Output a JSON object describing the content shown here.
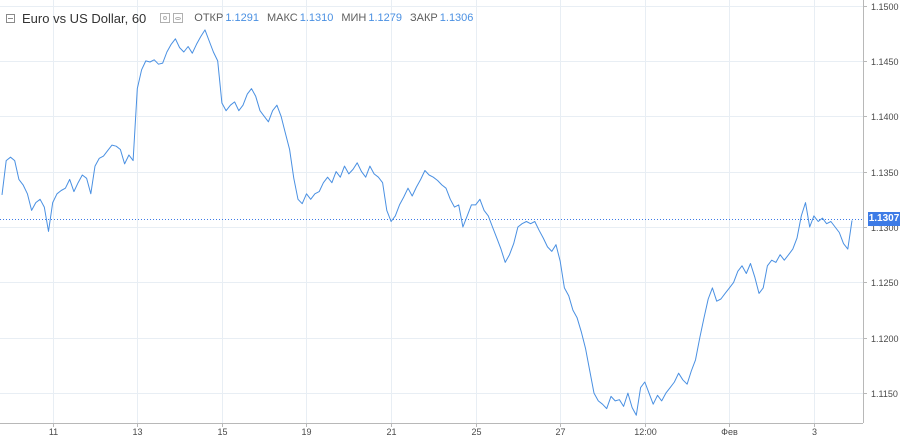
{
  "legend": {
    "symbol": "Euro vs US Dollar, 60",
    "open_label": "ОТКР",
    "open_value": "1.1291",
    "high_label": "МАКС",
    "high_value": "1.1310",
    "low_label": "МИН",
    "low_value": "1.1279",
    "close_label": "ЗАКР",
    "close_value": "1.1306"
  },
  "colors": {
    "line": "#4a90e2",
    "grid": "#e8eef4",
    "badge": "#3d7be6"
  },
  "icons": [
    "collapse-icon",
    "settings-icon",
    "visibility-icon"
  ],
  "chart_data": {
    "type": "line",
    "title": "Euro vs US Dollar, 60",
    "xlabel": "",
    "ylabel": "",
    "ylim": [
      1.1123,
      1.1505
    ],
    "grid": true,
    "y_ticks": [
      "1.1500",
      "1.1450",
      "1.1400",
      "1.1350",
      "1.1300",
      "1.1250",
      "1.1200",
      "1.1150"
    ],
    "y_tick_values": [
      1.15,
      1.145,
      1.14,
      1.135,
      1.13,
      1.125,
      1.12,
      1.115
    ],
    "x_ticks": [
      "11",
      "13",
      "15",
      "19",
      "21",
      "25",
      "27",
      "12:00",
      "Фев",
      "3"
    ],
    "x_tick_index": [
      12,
      32,
      52,
      72,
      92,
      112,
      132,
      152,
      172,
      192
    ],
    "current_price": 1.1307,
    "current_price_label": "1.1307",
    "series": [
      {
        "values": [
          1.1329,
          1.136,
          1.1363,
          1.136,
          1.1343,
          1.1338,
          1.133,
          1.1315,
          1.1322,
          1.1325,
          1.1318,
          1.1296,
          1.1322,
          1.133,
          1.1333,
          1.1335,
          1.1343,
          1.1332,
          1.134,
          1.1347,
          1.1344,
          1.133,
          1.1355,
          1.1362,
          1.1364,
          1.1369,
          1.1374,
          1.1373,
          1.137,
          1.1357,
          1.1365,
          1.136,
          1.1425,
          1.1442,
          1.145,
          1.1449,
          1.1451,
          1.1447,
          1.1448,
          1.1458,
          1.1465,
          1.147,
          1.1462,
          1.1458,
          1.1463,
          1.1457,
          1.1465,
          1.1472,
          1.1478,
          1.1468,
          1.1458,
          1.145,
          1.1412,
          1.1405,
          1.141,
          1.1413,
          1.1405,
          1.141,
          1.142,
          1.1425,
          1.1418,
          1.1405,
          1.14,
          1.1395,
          1.1405,
          1.141,
          1.14,
          1.1385,
          1.137,
          1.1344,
          1.1325,
          1.1321,
          1.133,
          1.1325,
          1.133,
          1.1332,
          1.134,
          1.1345,
          1.134,
          1.135,
          1.1345,
          1.1355,
          1.1348,
          1.1352,
          1.1358,
          1.135,
          1.1345,
          1.1355,
          1.1348,
          1.1345,
          1.134,
          1.1315,
          1.1305,
          1.131,
          1.132,
          1.1327,
          1.1335,
          1.1328,
          1.1336,
          1.1343,
          1.1351,
          1.1347,
          1.1345,
          1.1342,
          1.1338,
          1.1335,
          1.1325,
          1.1318,
          1.132,
          1.13,
          1.131,
          1.132,
          1.132,
          1.1325,
          1.1315,
          1.131,
          1.13,
          1.129,
          1.128,
          1.1268,
          1.1275,
          1.1285,
          1.13,
          1.1303,
          1.1305,
          1.1303,
          1.1305,
          1.1297,
          1.129,
          1.1282,
          1.1278,
          1.1284,
          1.1269,
          1.1245,
          1.1238,
          1.1225,
          1.1218,
          1.1205,
          1.119,
          1.117,
          1.115,
          1.1143,
          1.114,
          1.1136,
          1.1147,
          1.1143,
          1.1144,
          1.1138,
          1.115,
          1.1137,
          1.113,
          1.1155,
          1.116,
          1.115,
          1.114,
          1.1148,
          1.1143,
          1.115,
          1.1155,
          1.116,
          1.1168,
          1.1162,
          1.1158,
          1.117,
          1.118,
          1.12,
          1.1218,
          1.1235,
          1.1245,
          1.1233,
          1.1235,
          1.124,
          1.1245,
          1.125,
          1.126,
          1.1265,
          1.1258,
          1.1267,
          1.1255,
          1.124,
          1.1245,
          1.1265,
          1.127,
          1.1268,
          1.1275,
          1.127,
          1.1275,
          1.128,
          1.129,
          1.131,
          1.1322,
          1.13,
          1.131,
          1.1305,
          1.1308,
          1.1303,
          1.1305,
          1.13,
          1.1295,
          1.1285,
          1.128,
          1.1306
        ]
      }
    ]
  }
}
